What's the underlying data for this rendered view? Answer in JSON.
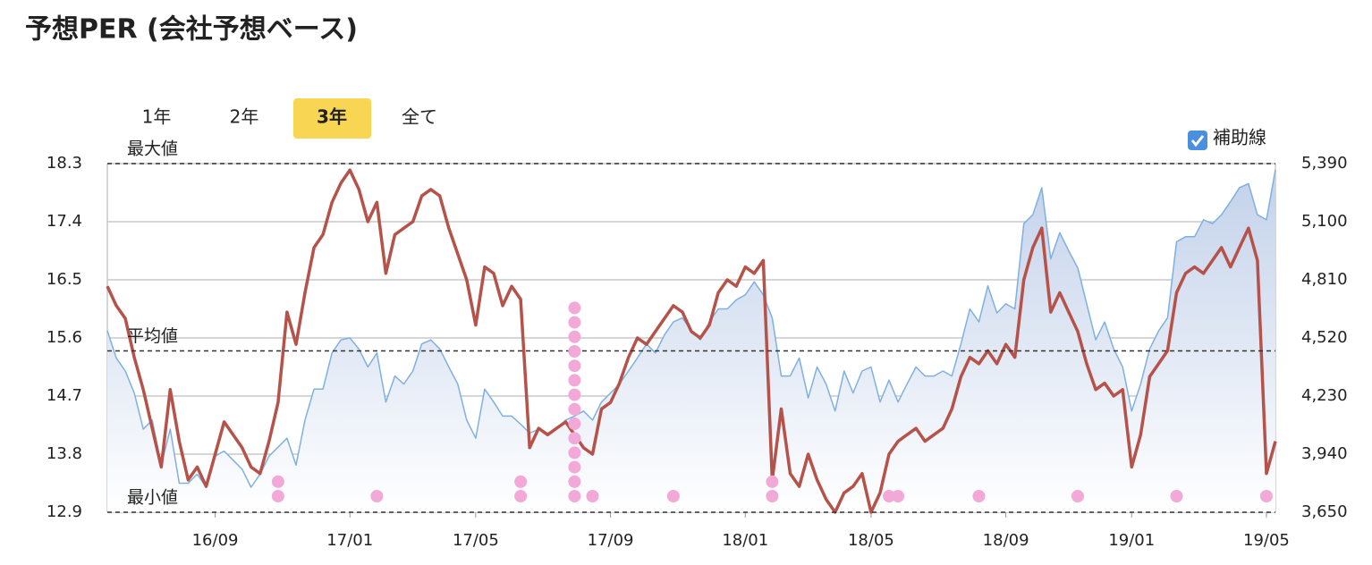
{
  "title": "予想PER (会社予想ベース)",
  "tabs": {
    "options": [
      "1年",
      "2年",
      "3年",
      "全て"
    ],
    "selected": 2
  },
  "guide_toggle": {
    "label": "補助線",
    "checked": true
  },
  "chart_data": {
    "type": "line",
    "categories": [
      null,
      null,
      null,
      null,
      null,
      null,
      null,
      null,
      null,
      null,
      null,
      null,
      "16/09",
      null,
      null,
      null,
      null,
      null,
      null,
      null,
      null,
      null,
      null,
      null,
      null,
      null,
      null,
      "17/01",
      null,
      null,
      null,
      null,
      null,
      null,
      null,
      null,
      null,
      null,
      null,
      null,
      null,
      "17/05",
      null,
      null,
      null,
      null,
      null,
      null,
      null,
      null,
      null,
      null,
      null,
      null,
      null,
      null,
      "17/09",
      null,
      null,
      null,
      null,
      null,
      null,
      null,
      null,
      null,
      null,
      null,
      null,
      null,
      null,
      "18/01",
      null,
      null,
      null,
      null,
      null,
      null,
      null,
      null,
      null,
      null,
      null,
      null,
      null,
      "18/05",
      null,
      null,
      null,
      null,
      null,
      null,
      null,
      null,
      null,
      null,
      null,
      null,
      null,
      null,
      "18/09",
      null,
      null,
      null,
      null,
      null,
      null,
      null,
      null,
      null,
      null,
      null,
      null,
      null,
      "19/01",
      null,
      null,
      null,
      null,
      null,
      null,
      null,
      null,
      null,
      null,
      null,
      null,
      null,
      null,
      "19/05",
      null
    ],
    "series": [
      {
        "color": "#7fb0e0",
        "axis": "y2",
        "area": true,
        "values": [
          4556,
          4420,
          4355,
          4245,
          4065,
          4110,
          3885,
          4065,
          3795,
          3795,
          3840,
          3775,
          3930,
          3955,
          3910,
          3865,
          3775,
          3840,
          3930,
          3975,
          4020,
          3885,
          4110,
          4265,
          4265,
          4445,
          4510,
          4520,
          4465,
          4375,
          4445,
          4200,
          4330,
          4290,
          4355,
          4490,
          4510,
          4465,
          4375,
          4290,
          4110,
          4020,
          4265,
          4200,
          4130,
          4130,
          4090,
          4045,
          4065,
          4045,
          4065,
          4110,
          4130,
          4155,
          4110,
          4200,
          4245,
          4290,
          4355,
          4420,
          4490,
          4445,
          4535,
          4600,
          4620,
          4555,
          4510,
          4600,
          4665,
          4665,
          4710,
          4735,
          4800,
          4735,
          4620,
          4330,
          4330,
          4420,
          4220,
          4375,
          4290,
          4155,
          4355,
          4245,
          4355,
          4375,
          4200,
          4310,
          4200,
          4290,
          4375,
          4330,
          4330,
          4355,
          4330,
          4490,
          4665,
          4600,
          4780,
          4645,
          4690,
          4665,
          5090,
          5135,
          5270,
          4915,
          5045,
          4955,
          4870,
          4690,
          4510,
          4600,
          4465,
          4375,
          4155,
          4290,
          4465,
          4555,
          4620,
          5000,
          5025,
          5025,
          5110,
          5090,
          5135,
          5200,
          5270,
          5290,
          5135,
          5110,
          5360
        ]
      },
      {
        "color": "#b5524a",
        "axis": "y",
        "values": [
          16.4,
          16.1,
          15.9,
          15.3,
          14.8,
          14.2,
          13.6,
          14.8,
          14.0,
          13.4,
          13.6,
          13.3,
          13.8,
          14.3,
          14.1,
          13.9,
          13.6,
          13.5,
          14.0,
          14.6,
          16.0,
          15.5,
          16.3,
          17.0,
          17.2,
          17.7,
          18.0,
          18.2,
          17.9,
          17.4,
          17.7,
          16.6,
          17.2,
          17.3,
          17.4,
          17.8,
          17.9,
          17.8,
          17.3,
          16.9,
          16.5,
          15.8,
          16.7,
          16.6,
          16.1,
          16.4,
          16.2,
          13.9,
          14.2,
          14.1,
          14.2,
          14.3,
          14.1,
          13.9,
          13.8,
          14.5,
          14.6,
          14.9,
          15.3,
          15.6,
          15.5,
          15.7,
          15.9,
          16.1,
          16.0,
          15.7,
          15.6,
          15.8,
          16.3,
          16.5,
          16.4,
          16.7,
          16.6,
          16.8,
          13.4,
          14.5,
          13.5,
          13.3,
          13.8,
          13.4,
          13.1,
          12.9,
          13.2,
          13.3,
          13.5,
          12.9,
          13.2,
          13.8,
          14.0,
          14.1,
          14.2,
          14.0,
          14.1,
          14.2,
          14.5,
          15.0,
          15.3,
          15.2,
          15.4,
          15.2,
          15.5,
          15.3,
          16.5,
          17.0,
          17.3,
          16.0,
          16.3,
          16.0,
          15.7,
          15.2,
          14.8,
          14.9,
          14.7,
          14.8,
          13.6,
          14.1,
          15.0,
          15.2,
          15.4,
          16.3,
          16.6,
          16.7,
          16.6,
          16.8,
          17.0,
          16.7,
          17.0,
          17.3,
          16.8,
          13.5,
          14.0
        ]
      }
    ],
    "event_color": "#f3a9d8",
    "event_counts": [
      null,
      null,
      null,
      null,
      null,
      null,
      null,
      null,
      null,
      null,
      null,
      null,
      null,
      null,
      null,
      null,
      null,
      null,
      null,
      2,
      null,
      null,
      null,
      null,
      null,
      null,
      null,
      null,
      null,
      null,
      1,
      null,
      null,
      null,
      null,
      null,
      null,
      null,
      null,
      null,
      null,
      null,
      null,
      null,
      null,
      null,
      2,
      null,
      null,
      null,
      null,
      null,
      14,
      null,
      1,
      null,
      null,
      null,
      null,
      null,
      null,
      null,
      null,
      1,
      null,
      null,
      null,
      null,
      null,
      null,
      null,
      null,
      null,
      null,
      2,
      null,
      null,
      null,
      null,
      null,
      null,
      null,
      null,
      null,
      null,
      null,
      null,
      1,
      1,
      null,
      null,
      null,
      null,
      null,
      null,
      null,
      null,
      1,
      null,
      null,
      null,
      null,
      null,
      null,
      null,
      null,
      null,
      null,
      1,
      null,
      null,
      null,
      null,
      null,
      null,
      null,
      null,
      null,
      null,
      1,
      null,
      null,
      null,
      null,
      null,
      null,
      null,
      null,
      null,
      1,
      null
    ],
    "reference_lines": [
      {
        "label": "最大値",
        "value": 18.3
      },
      {
        "label": "平均値",
        "value": 15.4
      },
      {
        "label": "最小値",
        "value": 12.9
      }
    ],
    "ylim": [
      12.9,
      18.3
    ],
    "yticks": [
      12.9,
      13.8,
      14.7,
      15.6,
      16.5,
      17.4,
      18.3
    ],
    "y2lim": [
      3650,
      5390
    ],
    "y2ticks": [
      {
        "value": 3650,
        "label": "3,650"
      },
      {
        "value": 3940,
        "label": "3,940"
      },
      {
        "value": 4230,
        "label": "4,230"
      },
      {
        "value": 4520,
        "label": "4,520"
      },
      {
        "value": 4810,
        "label": "4,810"
      },
      {
        "value": 5100,
        "label": "5,100"
      },
      {
        "value": 5390,
        "label": "5,390"
      }
    ],
    "grid": true
  }
}
